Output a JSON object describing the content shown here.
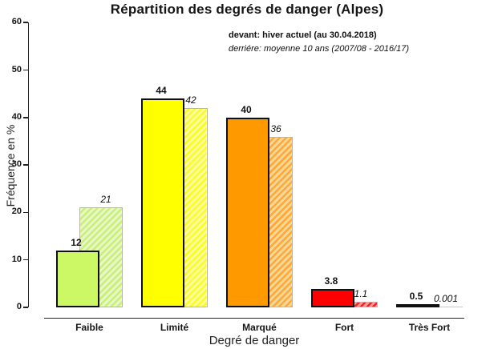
{
  "title": "Répartition des degrés de danger (Alpes)",
  "chart_data": {
    "type": "bar",
    "title": "Répartition des degrés de danger (Alpes)",
    "xlabel": "Degré de danger",
    "ylabel": "Fréquence en %",
    "ylim": [
      0,
      60
    ],
    "ytick_step": 10,
    "grid": false,
    "legend_position": "top-right",
    "categories": [
      "Faible",
      "Limité",
      "Marqué",
      "Fort",
      "Très Fort"
    ],
    "series": [
      {
        "name": "devant: hiver actuel (au 30.04.2018)",
        "values": [
          12,
          44,
          40,
          3.8,
          0.5
        ],
        "labels": [
          "12",
          "44",
          "40",
          "3.8",
          "0.5"
        ]
      },
      {
        "name": "derriére: moyenne 10 ans (2007/08 - 2016/17)",
        "values": [
          21,
          42,
          36,
          1.1,
          0.001
        ],
        "labels": [
          "21",
          "42",
          "36",
          "1.1",
          "0.001"
        ]
      }
    ],
    "front_colors": [
      "#ccf866",
      "#ffff00",
      "#ff9900",
      "#fe0000",
      "#111111"
    ],
    "back_styles": [
      {
        "bg": "#e9f8c2",
        "hatch": "#c8ef7d"
      },
      {
        "bg": "#ffffa0",
        "hatch": "#fbfb26"
      },
      {
        "bg": "#ffd795",
        "hatch": "#fba83c"
      },
      {
        "bg": "#ff9e9e",
        "hatch": "#f81f1f"
      },
      {
        "bg": "#c8c8c8",
        "hatch": "#c8c8c8"
      }
    ],
    "axis_color": "#222222",
    "front_border_color": "#111111",
    "back_border_color": "#b5b5b5"
  }
}
